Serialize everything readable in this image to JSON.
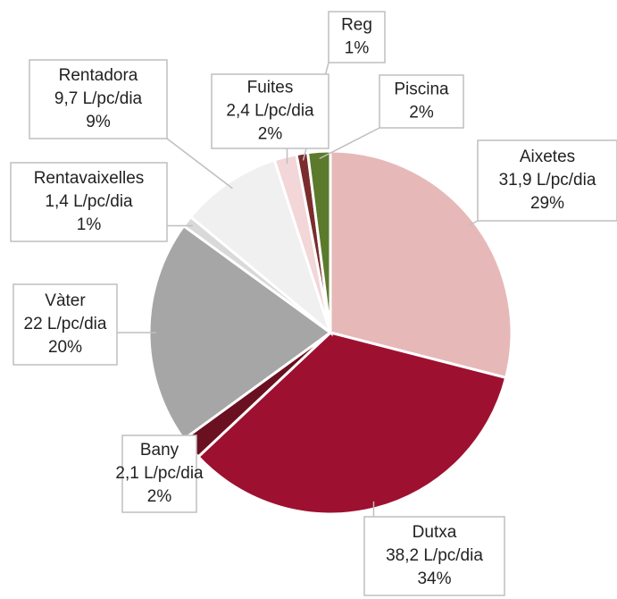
{
  "chart_data": {
    "type": "pie",
    "categories": [
      "Aixetes",
      "Dutxa",
      "Bany",
      "Vàter",
      "Rentavaixelles",
      "Rentadora",
      "Fuites",
      "Reg",
      "Piscina"
    ],
    "values": [
      29,
      34,
      2,
      20,
      1,
      9,
      2,
      1,
      2
    ],
    "value_labels": [
      "29%",
      "34%",
      "2%",
      "20%",
      "1%",
      "9%",
      "2%",
      "1%",
      "2%"
    ],
    "litres": [
      31.9,
      38.2,
      2.1,
      22,
      1.4,
      9.7,
      2.4,
      null,
      null
    ],
    "litres_labels": [
      "31,9 L/pc/dia",
      "38,2 L/pc/dia",
      "2,1 L/pc/dia",
      "22 L/pc/dia",
      "1,4 L/pc/dia",
      "9,7 L/pc/dia",
      "2,4 L/pc/dia",
      null,
      null
    ],
    "colors": [
      "#e6b9b8",
      "#9e1030",
      "#6b1020",
      "#a6a6a6",
      "#d9d9d9",
      "#f0f0f0",
      "#f2d6d8",
      "#7b2c2c",
      "#5b7a2c"
    ]
  }
}
